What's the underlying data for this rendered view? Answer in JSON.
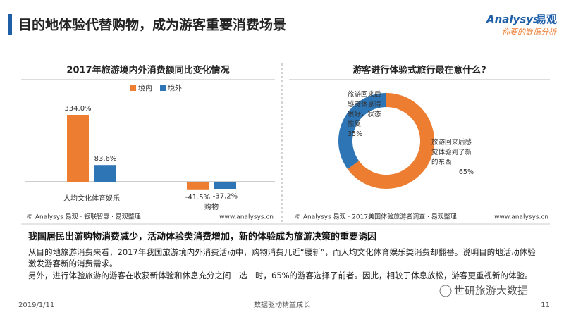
{
  "header": {
    "title": "目的地体验代替购物，成为游客重要消费场景",
    "logo_brand": "Analysys",
    "logo_cn": "易观",
    "logo_tagline": "你要的数据分析"
  },
  "chart_data": [
    {
      "type": "bar",
      "title": "2017年旅游境内外消费额同比变化情况",
      "categories": [
        "人均文化体育娱乐",
        "购物"
      ],
      "series": [
        {
          "name": "境内",
          "color": "#ED7D31",
          "values": [
            334.0,
            -41.5
          ],
          "value_labels": [
            "334.0%",
            "-41.5%"
          ]
        },
        {
          "name": "境外",
          "color": "#2E75B6",
          "values": [
            83.6,
            -37.2
          ],
          "value_labels": [
            "83.6%",
            "-37.2%"
          ]
        }
      ],
      "legend": "top-right",
      "source": "© Analysys 易观 · 银联智惠 · 易观整理",
      "url": "www.analysys.cn"
    },
    {
      "type": "pie",
      "donut": true,
      "title": "游客进行体验式旅行最在意什么?",
      "categories": [
        "旅游回来后感觉体验到了新的东西",
        "旅游回来后感觉休息得很好，状态恢复"
      ],
      "values": [
        65,
        35
      ],
      "value_labels": [
        "65%",
        "35%"
      ],
      "colors": [
        "#ED7D31",
        "#2E75B6"
      ],
      "source": "© Analysys 易观 · 2017美国体验旅游者调查 · 易观整理",
      "url": "www.analysys.cn"
    }
  ],
  "summary": {
    "heading": "我国居民出游购物消费减少，活动体验类消费增加，新的体验成为旅游决策的重要诱因",
    "paragraphs": [
      "从目的地旅游消费来看，2017年我国旅游境内外消费活动中，购物消费几近“腰斩”，而人均文化体育娱乐类消费却翻番。说明目的地活动体验激发游客新的消费需求。",
      "另外，进行体验旅游的游客在收获新体验和休息充分之间二选一时，65%的游客选择了前者。因此，相较于休息放松，游客更重视新的体验。"
    ]
  },
  "footer": {
    "date": "2019/1/11",
    "slogan": "数据驱动精益成长",
    "page": "11"
  },
  "watermark": "世研旅游大数据"
}
